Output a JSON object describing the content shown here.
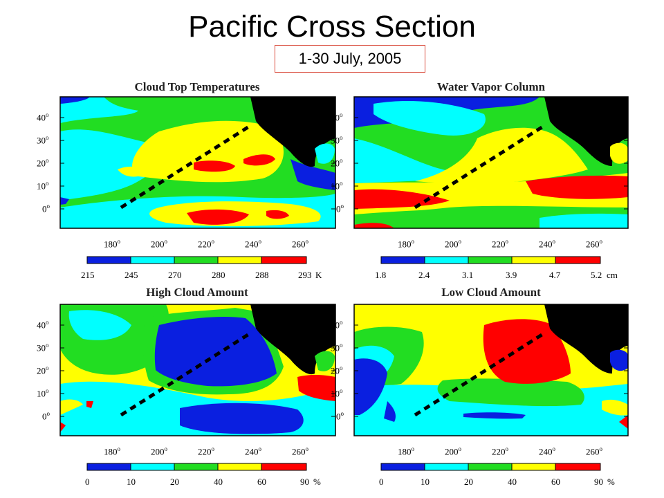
{
  "title": "Pacific Cross Section",
  "date_label": "1-30 July, 2005",
  "colors": {
    "dark_blue": "#0a1fe0",
    "cyan": "#00ffff",
    "green": "#22dd22",
    "yellow": "#ffff00",
    "red": "#ff0000",
    "land": "#000000",
    "date_border": "#d94a3a"
  },
  "lat_ticks": [
    "40",
    "30",
    "20",
    "10",
    "0"
  ],
  "lon_ticks": [
    "180",
    "200",
    "220",
    "240",
    "260"
  ],
  "panels": [
    {
      "title": "Cloud Top Temperatures",
      "colorbar": {
        "values": [
          "215",
          "245",
          "270",
          "280",
          "288",
          "293"
        ],
        "unit": "K"
      }
    },
    {
      "title": "Water Vapor Column",
      "colorbar": {
        "values": [
          "1.8",
          "2.4",
          "3.1",
          "3.9",
          "4.7",
          "5.2"
        ],
        "unit": "cm"
      }
    },
    {
      "title": "High Cloud Amount",
      "colorbar": {
        "values": [
          "0",
          "10",
          "20",
          "40",
          "60",
          "90"
        ],
        "unit": "%"
      }
    },
    {
      "title": "Low Cloud Amount",
      "colorbar": {
        "values": [
          "0",
          "10",
          "20",
          "40",
          "60",
          "90"
        ],
        "unit": "%"
      }
    }
  ]
}
